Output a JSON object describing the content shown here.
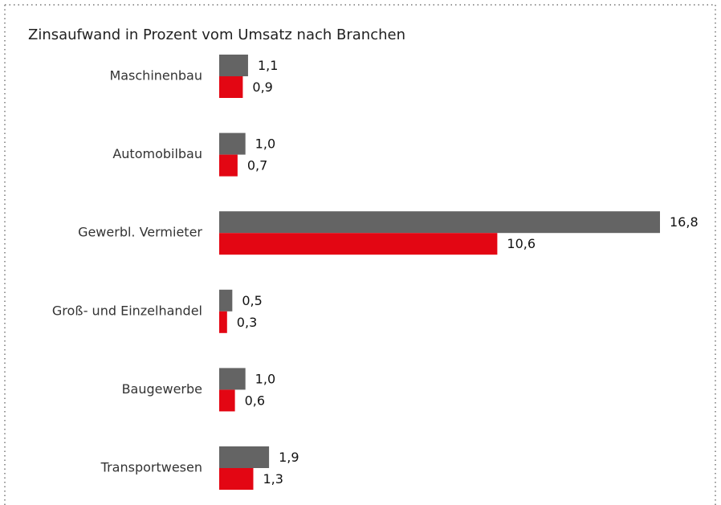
{
  "chart_data": {
    "type": "barh",
    "title": "Zinsaufwand in Prozent vom Umsatz nach Branchen",
    "categories": [
      "Maschinenbau",
      "Automobilbau",
      "Gewerbl. Vermieter",
      "Groß- und Einzelhandel",
      "Baugewerbe",
      "Transportwesen"
    ],
    "series": [
      {
        "color": "#646464",
        "values": [
          1.1,
          1.0,
          16.8,
          0.5,
          1.0,
          1.9
        ],
        "value_labels": [
          "1,1",
          "1,0",
          "16,8",
          "0,5",
          "1,0",
          "1,9"
        ]
      },
      {
        "color": "#e30613",
        "values": [
          0.9,
          0.7,
          10.6,
          0.3,
          0.6,
          1.3
        ],
        "value_labels": [
          "0,9",
          "0,7",
          "10,6",
          "0,3",
          "0,6",
          "1,3"
        ]
      }
    ]
  }
}
